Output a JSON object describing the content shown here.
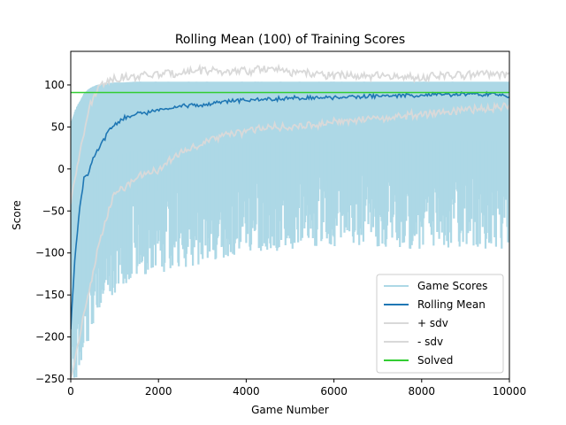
{
  "chart_data": {
    "type": "line",
    "title": "Rolling Mean (100) of Training Scores",
    "xlabel": "Game Number",
    "ylabel": "Score",
    "xlim": [
      0,
      10000
    ],
    "ylim": [
      -250,
      140
    ],
    "x_ticks": [
      0,
      2000,
      4000,
      6000,
      8000,
      10000
    ],
    "y_ticks": [
      -250,
      -200,
      -150,
      -100,
      -50,
      0,
      50,
      100
    ],
    "grid": false,
    "legend_position": "lower-right",
    "series": [
      {
        "name": "Game Scores",
        "color": "#add8e6",
        "kind": "band",
        "x": [
          0,
          100,
          200,
          300,
          400,
          500,
          600,
          800,
          1000,
          1200,
          1500,
          2000,
          2500,
          3000,
          3500,
          4000,
          4500,
          5000,
          6000,
          7000,
          8000,
          9000,
          10000
        ],
        "upper": [
          55,
          70,
          80,
          90,
          95,
          98,
          100,
          102,
          103,
          103,
          104,
          104,
          104,
          104,
          104,
          104,
          104,
          104,
          104,
          104,
          104,
          104,
          104
        ],
        "lower": [
          -250,
          -250,
          -250,
          -240,
          -210,
          -190,
          -175,
          -160,
          -150,
          -140,
          -130,
          -125,
          -120,
          -115,
          -110,
          -105,
          -100,
          -95,
          -95,
          -95,
          -95,
          -95,
          -95
        ]
      },
      {
        "name": "Rolling Mean",
        "color": "#1f77b4",
        "x": [
          0,
          100,
          200,
          300,
          400,
          500,
          700,
          900,
          1200,
          1500,
          2000,
          2500,
          3000,
          3500,
          4000,
          5000,
          6000,
          7000,
          8000,
          9000,
          10000
        ],
        "y": [
          -190,
          -100,
          -50,
          -10,
          -5,
          10,
          30,
          48,
          60,
          65,
          70,
          75,
          76,
          80,
          82,
          84,
          85,
          87,
          88,
          89,
          88
        ]
      },
      {
        "name": "+ sdv",
        "color": "#d9d9d9",
        "x": [
          0,
          200,
          400,
          600,
          800,
          1000,
          1500,
          2000,
          2500,
          3000,
          3500,
          4000,
          4500,
          5000,
          6000,
          7000,
          8000,
          9000,
          10000
        ],
        "y": [
          -40,
          20,
          70,
          95,
          105,
          108,
          110,
          112,
          115,
          118,
          115,
          116,
          120,
          115,
          112,
          110,
          110,
          112,
          113
        ]
      },
      {
        "name": "- sdv",
        "color": "#d9d9d9",
        "x": [
          0,
          200,
          400,
          600,
          800,
          1000,
          1500,
          2000,
          2500,
          3000,
          3500,
          4000,
          4500,
          5000,
          6000,
          7000,
          8000,
          9000,
          10000
        ],
        "y": [
          -250,
          -200,
          -150,
          -100,
          -60,
          -30,
          -10,
          0,
          20,
          30,
          40,
          45,
          50,
          50,
          55,
          60,
          65,
          70,
          75
        ]
      },
      {
        "name": "Solved",
        "color": "#32cd32",
        "x": [
          0,
          10000
        ],
        "y": [
          91,
          91
        ]
      }
    ]
  }
}
